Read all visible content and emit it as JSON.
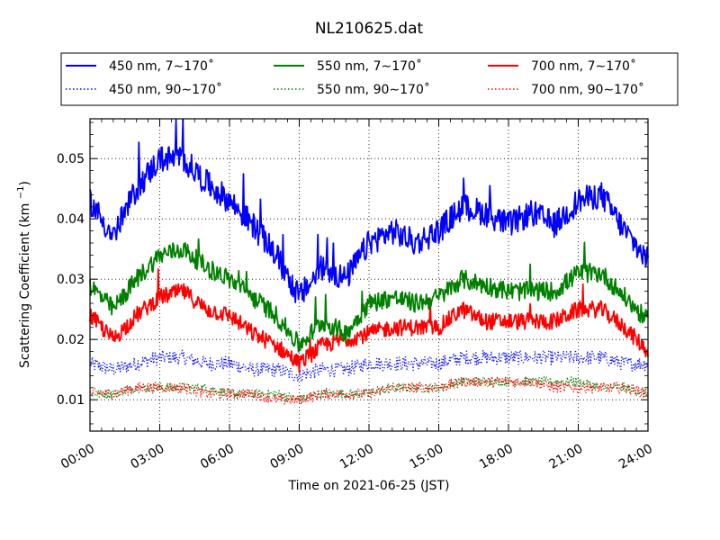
{
  "chart_data": {
    "type": "line",
    "title": "NL210625.dat",
    "xlabel": "Time on 2021-06-25 (JST)",
    "ylabel": "Scattering Coefficient (km⁻¹)",
    "xlim_hours": [
      0,
      24
    ],
    "ylim": [
      0.0048,
      0.0566
    ],
    "grid": true,
    "legend_placement": "top, above plot, 3 columns",
    "x_ticks": [
      "00:00",
      "03:00",
      "06:00",
      "09:00",
      "12:00",
      "15:00",
      "18:00",
      "21:00",
      "24:00"
    ],
    "y_ticks": [
      0.01,
      0.02,
      0.03,
      0.04,
      0.05
    ],
    "y_tick_labels": [
      "0.01",
      "0.02",
      "0.03",
      "0.04",
      "0.05"
    ],
    "x_hours": [
      0,
      1,
      2,
      3,
      4,
      5,
      6,
      7,
      8,
      9,
      10,
      11,
      12,
      13,
      14,
      15,
      16,
      17,
      18,
      19,
      20,
      21,
      22,
      23,
      24
    ],
    "series": [
      {
        "name": "450 nm, 7∼170˚",
        "color": "#0000ff",
        "style": "solid",
        "values": [
          0.043,
          0.037,
          0.045,
          0.05,
          0.05,
          0.046,
          0.043,
          0.039,
          0.034,
          0.027,
          0.032,
          0.03,
          0.036,
          0.038,
          0.036,
          0.038,
          0.042,
          0.041,
          0.039,
          0.041,
          0.039,
          0.043,
          0.044,
          0.038,
          0.033
        ],
        "noise": 0.0022
      },
      {
        "name": "550 nm, 7∼170˚",
        "color": "#008000",
        "style": "solid",
        "values": [
          0.029,
          0.025,
          0.03,
          0.034,
          0.035,
          0.032,
          0.03,
          0.027,
          0.024,
          0.019,
          0.023,
          0.021,
          0.026,
          0.027,
          0.026,
          0.027,
          0.03,
          0.029,
          0.028,
          0.028,
          0.028,
          0.031,
          0.031,
          0.027,
          0.023
        ],
        "noise": 0.0016
      },
      {
        "name": "700 nm, 7∼170˚",
        "color": "#ff0000",
        "style": "solid",
        "values": [
          0.024,
          0.02,
          0.024,
          0.027,
          0.028,
          0.025,
          0.024,
          0.021,
          0.019,
          0.016,
          0.019,
          0.02,
          0.021,
          0.022,
          0.022,
          0.022,
          0.025,
          0.023,
          0.023,
          0.023,
          0.023,
          0.025,
          0.025,
          0.022,
          0.018
        ],
        "noise": 0.0014
      },
      {
        "name": "450 nm, 90∼170˚",
        "color": "#0000ff",
        "style": "dotted",
        "values": [
          0.016,
          0.015,
          0.016,
          0.017,
          0.017,
          0.016,
          0.016,
          0.015,
          0.015,
          0.014,
          0.015,
          0.015,
          0.016,
          0.016,
          0.016,
          0.016,
          0.017,
          0.017,
          0.017,
          0.017,
          0.017,
          0.017,
          0.017,
          0.016,
          0.016
        ],
        "noise": 0.0012
      },
      {
        "name": "550 nm, 90∼170˚",
        "color": "#008000",
        "style": "dotted",
        "values": [
          0.011,
          0.011,
          0.012,
          0.012,
          0.012,
          0.012,
          0.011,
          0.011,
          0.011,
          0.01,
          0.011,
          0.011,
          0.011,
          0.012,
          0.012,
          0.012,
          0.013,
          0.013,
          0.013,
          0.013,
          0.013,
          0.013,
          0.012,
          0.012,
          0.011
        ],
        "noise": 0.0008
      },
      {
        "name": "700 nm, 90∼170˚",
        "color": "#ff0000",
        "style": "dotted",
        "values": [
          0.011,
          0.011,
          0.012,
          0.012,
          0.012,
          0.011,
          0.011,
          0.011,
          0.01,
          0.01,
          0.011,
          0.011,
          0.011,
          0.012,
          0.012,
          0.012,
          0.013,
          0.013,
          0.013,
          0.013,
          0.012,
          0.012,
          0.012,
          0.012,
          0.011
        ],
        "noise": 0.0009
      }
    ],
    "legend": [
      {
        "label": "450 nm, 7∼170˚",
        "color": "#0000ff",
        "style": "solid"
      },
      {
        "label": "550 nm, 7∼170˚",
        "color": "#008000",
        "style": "solid"
      },
      {
        "label": "700 nm, 7∼170˚",
        "color": "#ff0000",
        "style": "solid"
      },
      {
        "label": "450 nm, 90∼170˚",
        "color": "#0000ff",
        "style": "dotted"
      },
      {
        "label": "550 nm, 90∼170˚",
        "color": "#008000",
        "style": "dotted"
      },
      {
        "label": "700 nm, 90∼170˚",
        "color": "#ff0000",
        "style": "dotted"
      }
    ]
  }
}
